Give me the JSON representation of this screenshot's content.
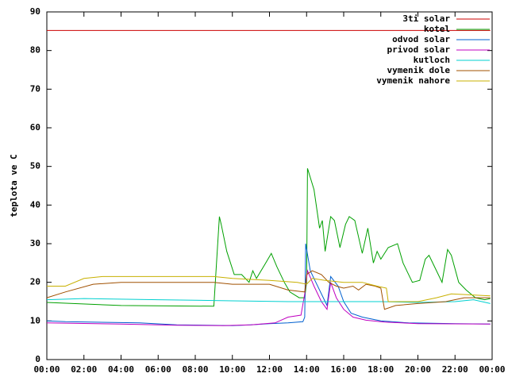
{
  "chart_data": {
    "type": "line",
    "ylabel": "teplota ve C",
    "xlim": [
      0,
      24
    ],
    "ylim": [
      0,
      90
    ],
    "yticks": [
      0,
      10,
      20,
      30,
      40,
      50,
      60,
      70,
      80,
      90
    ],
    "xticks": [
      {
        "value": 0,
        "label": "00:00"
      },
      {
        "value": 2,
        "label": "02:00"
      },
      {
        "value": 4,
        "label": "04:00"
      },
      {
        "value": 6,
        "label": "06:00"
      },
      {
        "value": 8,
        "label": "08:00"
      },
      {
        "value": 10,
        "label": "10:00"
      },
      {
        "value": 12,
        "label": "12:00"
      },
      {
        "value": 14,
        "label": "14:00"
      },
      {
        "value": 16,
        "label": "16:00"
      },
      {
        "value": 18,
        "label": "18:00"
      },
      {
        "value": 20,
        "label": "20:00"
      },
      {
        "value": 22,
        "label": "22:00"
      },
      {
        "value": 24,
        "label": "00:00"
      }
    ],
    "legend": "top-right",
    "series": [
      {
        "name": "3ti solar",
        "color": "#cc0000",
        "x": [
          0,
          23.9
        ],
        "values": [
          85.2,
          85.2
        ]
      },
      {
        "name": "kotel",
        "color": "#00a000",
        "x": [
          0,
          4,
          9.0,
          9.3,
          9.4,
          9.7,
          10.1,
          10.5,
          10.9,
          11.1,
          11.3,
          11.8,
          12.1,
          12.4,
          12.8,
          13.1,
          13.6,
          13.9,
          14.0,
          14.05,
          14.4,
          14.7,
          14.85,
          15.0,
          15.3,
          15.5,
          15.8,
          16.1,
          16.3,
          16.6,
          17.0,
          17.3,
          17.6,
          17.8,
          18.0,
          18.4,
          18.9,
          19.2,
          19.7,
          20.1,
          20.4,
          20.6,
          21.0,
          21.3,
          21.6,
          21.8,
          22.2,
          22.6,
          23.1,
          23.6,
          23.9
        ],
        "values": [
          14.8,
          14,
          13.8,
          37,
          35,
          28,
          22,
          22,
          20,
          23,
          21,
          25,
          27.5,
          24,
          20,
          17.5,
          16,
          16,
          20,
          49.5,
          44,
          34,
          36,
          28,
          37,
          36,
          29,
          35,
          37,
          36,
          27.5,
          34,
          25,
          28,
          26,
          29,
          30,
          25,
          20,
          20.5,
          26,
          27,
          23,
          20,
          28.5,
          27,
          20,
          18,
          16,
          15.5,
          15.8
        ]
      },
      {
        "name": "odvod solar",
        "color": "#0060d0",
        "x": [
          0,
          1,
          5,
          7,
          10,
          11,
          12,
          13,
          13.8,
          13.9,
          13.95,
          14.2,
          14.5,
          14.9,
          15.1,
          15.3,
          15.7,
          16.0,
          16.4,
          17.0,
          18.0,
          19.5,
          22,
          23.9
        ],
        "values": [
          10,
          9.8,
          9.5,
          9,
          8.8,
          9,
          9.3,
          9.5,
          9.8,
          11,
          30,
          23,
          20,
          16,
          14,
          21.5,
          19,
          15,
          12,
          11,
          10,
          9.5,
          9.3,
          9.2
        ]
      },
      {
        "name": "privod solar",
        "color": "#c000c0",
        "x": [
          0,
          4,
          7,
          9.5,
          11,
          12.3,
          13.0,
          13.7,
          13.9,
          14.05,
          14.4,
          14.8,
          15.1,
          15.3,
          15.6,
          16.0,
          16.5,
          17.2,
          18.2,
          20,
          23.9
        ],
        "values": [
          9.5,
          9.2,
          8.9,
          8.8,
          9,
          9.5,
          11,
          11.5,
          17,
          23,
          19,
          15,
          13,
          20,
          16,
          13,
          11,
          10.2,
          9.7,
          9.3,
          9.2
        ]
      },
      {
        "name": "kutloch",
        "color": "#00d0d0",
        "x": [
          0,
          2,
          6,
          10,
          13,
          14,
          18,
          20,
          22,
          23,
          23.9
        ],
        "values": [
          15.5,
          15.8,
          15.5,
          15.2,
          15,
          15,
          15,
          14.8,
          15,
          15.5,
          14.5
        ]
      },
      {
        "name": "vymenik dole",
        "color": "#a05000",
        "x": [
          0,
          1,
          2.5,
          4,
          9,
          10,
          12,
          13,
          13.9,
          14.0,
          14.3,
          14.8,
          15.2,
          15.6,
          16.0,
          16.5,
          16.8,
          17.2,
          17.7,
          18,
          18.2,
          18.8,
          20,
          21.5,
          22.5,
          23.9
        ],
        "values": [
          16,
          17.5,
          19.5,
          20,
          20,
          19.5,
          19.5,
          18,
          17.5,
          22,
          23,
          22,
          20,
          19,
          18.5,
          19,
          18,
          19.5,
          19,
          18.5,
          13,
          14,
          14.5,
          15,
          16,
          16
        ]
      },
      {
        "name": "vymenik nahore",
        "color": "#c8b000",
        "x": [
          0,
          1,
          2,
          3,
          9,
          10,
          12,
          13.5,
          14,
          14.3,
          15,
          16,
          17,
          17.8,
          18.3,
          18.4,
          19.5,
          20,
          21,
          21.8,
          23.9
        ],
        "values": [
          19,
          19,
          21,
          21.5,
          21.5,
          21,
          20.5,
          20,
          19.5,
          21,
          20.5,
          20,
          20,
          19,
          18.5,
          15,
          15,
          15,
          16,
          17,
          16.5
        ]
      }
    ]
  }
}
